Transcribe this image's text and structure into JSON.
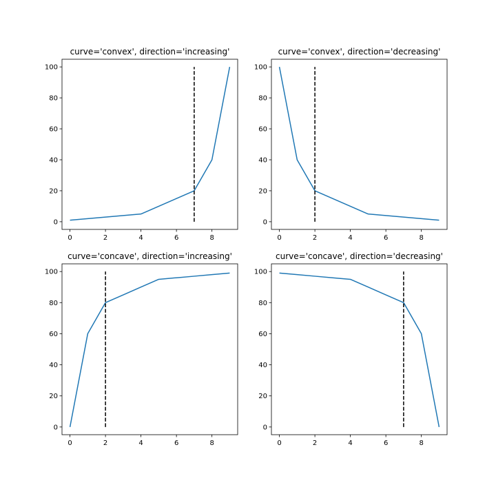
{
  "chart_data": [
    {
      "type": "line",
      "title": "curve='convex', direction='increasing'",
      "xlim": [
        -0.45,
        9.45
      ],
      "ylim": [
        -4.95,
        104.95
      ],
      "xticks": [
        0,
        2,
        4,
        6,
        8
      ],
      "yticks": [
        0,
        20,
        40,
        60,
        80,
        100
      ],
      "series": [
        {
          "x": [
            0,
            1,
            2,
            3,
            4,
            5,
            6,
            7,
            8,
            9
          ],
          "y": [
            1,
            2,
            3,
            4,
            5,
            10,
            15,
            20,
            40,
            100
          ],
          "color": "#1f77b4"
        }
      ],
      "knee_line": {
        "x": 7,
        "y_from": 0,
        "y_to": 100,
        "style": "dashed",
        "color": "#000000"
      }
    },
    {
      "type": "line",
      "title": "curve='convex', direction='decreasing'",
      "xlim": [
        -0.45,
        9.45
      ],
      "ylim": [
        -4.95,
        104.95
      ],
      "xticks": [
        0,
        2,
        4,
        6,
        8
      ],
      "yticks": [
        0,
        20,
        40,
        60,
        80,
        100
      ],
      "series": [
        {
          "x": [
            0,
            1,
            2,
            3,
            4,
            5,
            6,
            7,
            8,
            9
          ],
          "y": [
            100,
            40,
            20,
            15,
            10,
            5,
            4,
            3,
            2,
            1
          ],
          "color": "#1f77b4"
        }
      ],
      "knee_line": {
        "x": 2,
        "y_from": 0,
        "y_to": 100,
        "style": "dashed",
        "color": "#000000"
      }
    },
    {
      "type": "line",
      "title": "curve='concave', direction='increasing'",
      "xlim": [
        -0.45,
        9.45
      ],
      "ylim": [
        -4.95,
        104.95
      ],
      "xticks": [
        0,
        2,
        4,
        6,
        8
      ],
      "yticks": [
        0,
        20,
        40,
        60,
        80,
        100
      ],
      "series": [
        {
          "x": [
            0,
            1,
            2,
            3,
            4,
            5,
            6,
            7,
            8,
            9
          ],
          "y": [
            0,
            60,
            80,
            85,
            90,
            95,
            96,
            97,
            98,
            99
          ],
          "color": "#1f77b4"
        }
      ],
      "knee_line": {
        "x": 2,
        "y_from": 0,
        "y_to": 100,
        "style": "dashed",
        "color": "#000000"
      }
    },
    {
      "type": "line",
      "title": "curve='concave', direction='decreasing'",
      "xlim": [
        -0.45,
        9.45
      ],
      "ylim": [
        -4.95,
        104.95
      ],
      "xticks": [
        0,
        2,
        4,
        6,
        8
      ],
      "yticks": [
        0,
        20,
        40,
        60,
        80,
        100
      ],
      "series": [
        {
          "x": [
            0,
            1,
            2,
            3,
            4,
            5,
            6,
            7,
            8,
            9
          ],
          "y": [
            99,
            98,
            97,
            96,
            95,
            90,
            85,
            80,
            60,
            0
          ],
          "color": "#1f77b4"
        }
      ],
      "knee_line": {
        "x": 7,
        "y_from": 0,
        "y_to": 100,
        "style": "dashed",
        "color": "#000000"
      }
    }
  ]
}
